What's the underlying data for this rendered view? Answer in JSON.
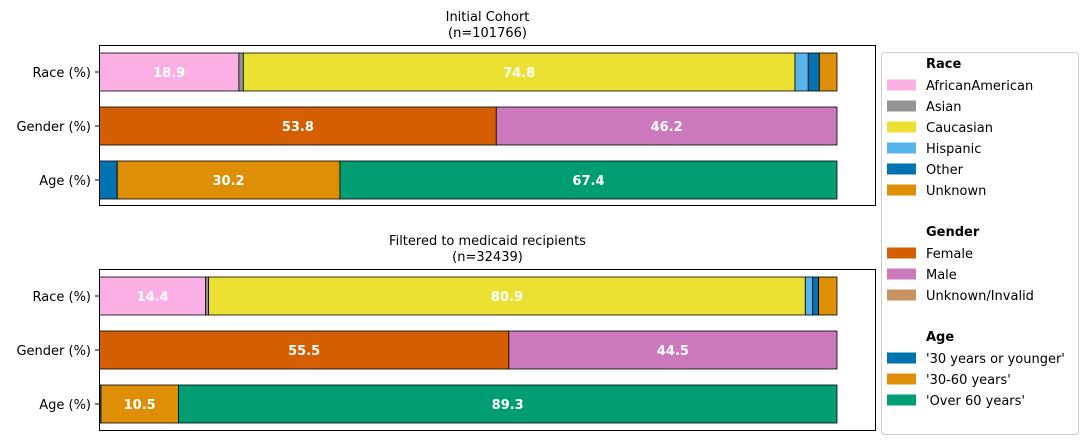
{
  "chart_data": [
    {
      "type": "bar",
      "orientation": "horizontal",
      "stacked": true,
      "title": "Initial Cohort",
      "subtitle": "(n=101766)",
      "categories": [
        "Race (%)",
        "Gender (%)",
        "Age (%)"
      ],
      "xlim": [
        0,
        100
      ],
      "rows": [
        {
          "label": "Race (%)",
          "group": "Race",
          "segments": [
            {
              "name": "AfricanAmerican",
              "value": 18.9,
              "label": "18.9"
            },
            {
              "name": "Asian",
              "value": 0.6,
              "label": ""
            },
            {
              "name": "Caucasian",
              "value": 74.8,
              "label": "74.8"
            },
            {
              "name": "Hispanic",
              "value": 1.8,
              "label": ""
            },
            {
              "name": "Other",
              "value": 1.5,
              "label": ""
            },
            {
              "name": "Unknown",
              "value": 2.4,
              "label": ""
            }
          ]
        },
        {
          "label": "Gender (%)",
          "group": "Gender",
          "segments": [
            {
              "name": "Female",
              "value": 53.8,
              "label": "53.8"
            },
            {
              "name": "Male",
              "value": 46.2,
              "label": "46.2"
            },
            {
              "name": "Unknown/Invalid",
              "value": 0.0,
              "label": ""
            }
          ]
        },
        {
          "label": "Age (%)",
          "group": "Age",
          "segments": [
            {
              "name": "'30 years or younger'",
              "value": 2.4,
              "label": ""
            },
            {
              "name": "'30-60 years'",
              "value": 30.2,
              "label": "30.2"
            },
            {
              "name": "'Over 60 years'",
              "value": 67.4,
              "label": "67.4"
            }
          ]
        }
      ]
    },
    {
      "type": "bar",
      "orientation": "horizontal",
      "stacked": true,
      "title": "Filtered to medicaid recipients",
      "subtitle": "(n=32439)",
      "categories": [
        "Race (%)",
        "Gender (%)",
        "Age (%)"
      ],
      "xlim": [
        0,
        100
      ],
      "rows": [
        {
          "label": "Race (%)",
          "group": "Race",
          "segments": [
            {
              "name": "AfricanAmerican",
              "value": 14.4,
              "label": "14.4"
            },
            {
              "name": "Asian",
              "value": 0.4,
              "label": ""
            },
            {
              "name": "Caucasian",
              "value": 80.9,
              "label": "80.9"
            },
            {
              "name": "Hispanic",
              "value": 1.0,
              "label": ""
            },
            {
              "name": "Other",
              "value": 0.8,
              "label": ""
            },
            {
              "name": "Unknown",
              "value": 2.5,
              "label": ""
            }
          ]
        },
        {
          "label": "Gender (%)",
          "group": "Gender",
          "segments": [
            {
              "name": "Female",
              "value": 55.5,
              "label": "55.5"
            },
            {
              "name": "Male",
              "value": 44.5,
              "label": "44.5"
            },
            {
              "name": "Unknown/Invalid",
              "value": 0.0,
              "label": ""
            }
          ]
        },
        {
          "label": "Age (%)",
          "group": "Age",
          "segments": [
            {
              "name": "'30 years or younger'",
              "value": 0.2,
              "label": ""
            },
            {
              "name": "'30-60 years'",
              "value": 10.5,
              "label": "10.5"
            },
            {
              "name": "'Over 60 years'",
              "value": 89.3,
              "label": "89.3"
            }
          ]
        }
      ]
    }
  ],
  "legend": {
    "placement": "right",
    "groups": [
      {
        "title": "Race",
        "entries": [
          {
            "name": "AfricanAmerican",
            "color": "#fbafe4"
          },
          {
            "name": "Asian",
            "color": "#949494"
          },
          {
            "name": "Caucasian",
            "color": "#ece133"
          },
          {
            "name": "Hispanic",
            "color": "#56b4e9"
          },
          {
            "name": "Other",
            "color": "#0173b2"
          },
          {
            "name": "Unknown",
            "color": "#de8f05"
          }
        ]
      },
      {
        "title": "Gender",
        "entries": [
          {
            "name": "Female",
            "color": "#d55e00"
          },
          {
            "name": "Male",
            "color": "#cc78bc"
          },
          {
            "name": "Unknown/Invalid",
            "color": "#ca9161"
          }
        ]
      },
      {
        "title": "Age",
        "entries": [
          {
            "name": "'30 years or younger'",
            "color": "#0173b2"
          },
          {
            "name": "'30-60 years'",
            "color": "#de8f05"
          },
          {
            "name": "'Over 60 years'",
            "color": "#029e73"
          }
        ]
      }
    ]
  }
}
